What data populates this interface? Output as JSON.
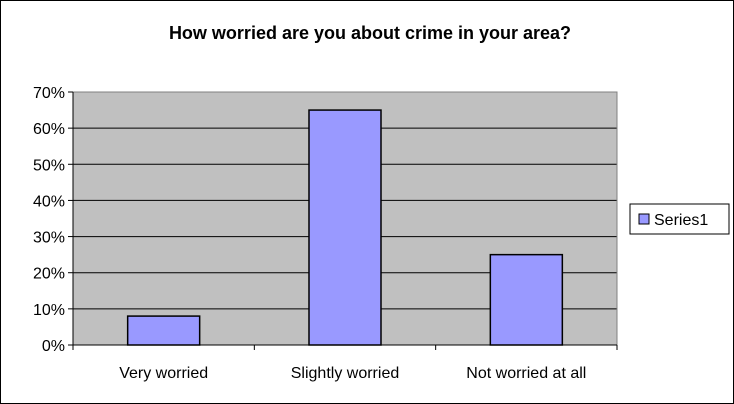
{
  "chart_data": {
    "type": "bar",
    "title": "How worried are you about crime in your area?",
    "categories": [
      "Very worried",
      "Slightly worried",
      "Not worried at all"
    ],
    "series": [
      {
        "name": "Series1",
        "values": [
          0.08,
          0.65,
          0.25
        ]
      }
    ],
    "ylim": [
      0,
      0.7
    ],
    "yticks": [
      0,
      0.1,
      0.2,
      0.3,
      0.4,
      0.5,
      0.6,
      0.7
    ],
    "ytick_labels": [
      "0%",
      "10%",
      "20%",
      "30%",
      "40%",
      "50%",
      "60%",
      "70%"
    ],
    "grid": true,
    "legend_position": "right",
    "colors": {
      "bar_fill": "#9999ff",
      "bar_stroke": "#000000",
      "plot_bg": "#c0c0c0",
      "grid": "#000000",
      "frame": "#000000"
    }
  }
}
